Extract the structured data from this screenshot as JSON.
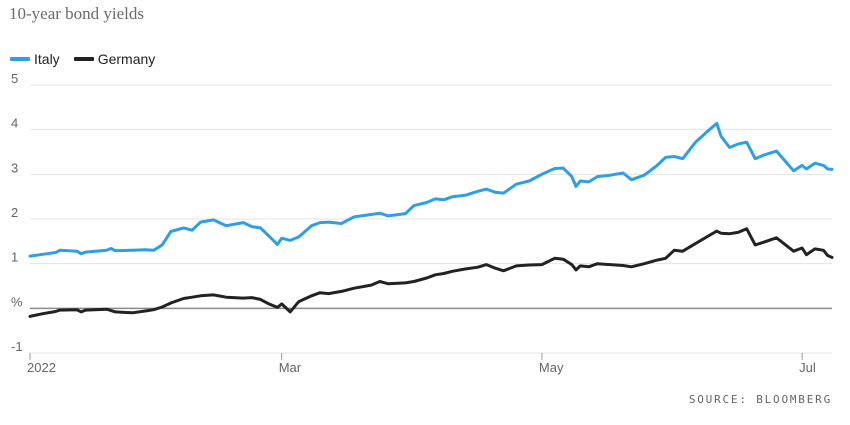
{
  "chart_data": {
    "type": "line",
    "title": "10-year bond yields",
    "source": "SOURCE: BLOOMBERG",
    "y_axis": {
      "min": -1,
      "max": 5,
      "ticks": [
        {
          "value": 5,
          "label": "5"
        },
        {
          "value": 4,
          "label": "4"
        },
        {
          "value": 3,
          "label": "3"
        },
        {
          "value": 2,
          "label": "2"
        },
        {
          "value": 1,
          "label": "1"
        },
        {
          "value": 0,
          "label": "%"
        },
        {
          "value": -1,
          "label": "-1"
        }
      ]
    },
    "x_axis": {
      "start": "2022-01-01",
      "end": "2022-07-08",
      "ticks": [
        {
          "date": "2022-01-01",
          "label": "2022"
        },
        {
          "date": "2022-03-01",
          "label": "Mar"
        },
        {
          "date": "2022-05-01",
          "label": "May"
        },
        {
          "date": "2022-07-01",
          "label": "Jul"
        }
      ]
    },
    "legend_position": "top-left",
    "series": [
      {
        "name": "Italy",
        "color": "#2e9fe3",
        "points": [
          [
            "2022-01-01",
            1.17
          ],
          [
            "2022-01-04",
            1.21
          ],
          [
            "2022-01-07",
            1.25
          ],
          [
            "2022-01-08",
            1.3
          ],
          [
            "2022-01-12",
            1.28
          ],
          [
            "2022-01-13",
            1.22
          ],
          [
            "2022-01-14",
            1.26
          ],
          [
            "2022-01-19",
            1.3
          ],
          [
            "2022-01-20",
            1.34
          ],
          [
            "2022-01-21",
            1.29
          ],
          [
            "2022-01-25",
            1.3
          ],
          [
            "2022-01-28",
            1.31
          ],
          [
            "2022-01-30",
            1.3
          ],
          [
            "2022-02-01",
            1.42
          ],
          [
            "2022-02-03",
            1.72
          ],
          [
            "2022-02-06",
            1.8
          ],
          [
            "2022-02-08",
            1.75
          ],
          [
            "2022-02-10",
            1.93
          ],
          [
            "2022-02-13",
            1.98
          ],
          [
            "2022-02-16",
            1.85
          ],
          [
            "2022-02-20",
            1.92
          ],
          [
            "2022-02-22",
            1.83
          ],
          [
            "2022-02-24",
            1.8
          ],
          [
            "2022-02-26",
            1.62
          ],
          [
            "2022-02-28",
            1.43
          ],
          [
            "2022-03-01",
            1.57
          ],
          [
            "2022-03-03",
            1.52
          ],
          [
            "2022-03-05",
            1.6
          ],
          [
            "2022-03-08",
            1.85
          ],
          [
            "2022-03-10",
            1.92
          ],
          [
            "2022-03-12",
            1.93
          ],
          [
            "2022-03-15",
            1.9
          ],
          [
            "2022-03-18",
            2.05
          ],
          [
            "2022-03-22",
            2.1
          ],
          [
            "2022-03-24",
            2.13
          ],
          [
            "2022-03-26",
            2.07
          ],
          [
            "2022-03-30",
            2.12
          ],
          [
            "2022-04-01",
            2.3
          ],
          [
            "2022-04-04",
            2.37
          ],
          [
            "2022-04-06",
            2.45
          ],
          [
            "2022-04-08",
            2.43
          ],
          [
            "2022-04-10",
            2.5
          ],
          [
            "2022-04-13",
            2.53
          ],
          [
            "2022-04-16",
            2.62
          ],
          [
            "2022-04-18",
            2.67
          ],
          [
            "2022-04-20",
            2.6
          ],
          [
            "2022-04-22",
            2.58
          ],
          [
            "2022-04-25",
            2.78
          ],
          [
            "2022-04-28",
            2.85
          ],
          [
            "2022-05-01",
            3.0
          ],
          [
            "2022-05-04",
            3.13
          ],
          [
            "2022-05-06",
            3.14
          ],
          [
            "2022-05-08",
            2.95
          ],
          [
            "2022-05-09",
            2.73
          ],
          [
            "2022-05-10",
            2.85
          ],
          [
            "2022-05-12",
            2.83
          ],
          [
            "2022-05-14",
            2.95
          ],
          [
            "2022-05-17",
            2.98
          ],
          [
            "2022-05-20",
            3.03
          ],
          [
            "2022-05-22",
            2.88
          ],
          [
            "2022-05-25",
            2.98
          ],
          [
            "2022-05-28",
            3.2
          ],
          [
            "2022-05-30",
            3.38
          ],
          [
            "2022-06-01",
            3.4
          ],
          [
            "2022-06-03",
            3.35
          ],
          [
            "2022-06-06",
            3.72
          ],
          [
            "2022-06-09",
            3.98
          ],
          [
            "2022-06-11",
            4.14
          ],
          [
            "2022-06-12",
            3.85
          ],
          [
            "2022-06-14",
            3.6
          ],
          [
            "2022-06-16",
            3.68
          ],
          [
            "2022-06-18",
            3.72
          ],
          [
            "2022-06-20",
            3.35
          ],
          [
            "2022-06-22",
            3.43
          ],
          [
            "2022-06-25",
            3.52
          ],
          [
            "2022-06-29",
            3.08
          ],
          [
            "2022-07-01",
            3.2
          ],
          [
            "2022-07-02",
            3.12
          ],
          [
            "2022-07-04",
            3.25
          ],
          [
            "2022-07-06",
            3.2
          ],
          [
            "2022-07-07",
            3.12
          ],
          [
            "2022-07-08",
            3.11
          ]
        ]
      },
      {
        "name": "Germany",
        "color": "#222222",
        "points": [
          [
            "2022-01-01",
            -0.18
          ],
          [
            "2022-01-04",
            -0.12
          ],
          [
            "2022-01-07",
            -0.07
          ],
          [
            "2022-01-08",
            -0.04
          ],
          [
            "2022-01-12",
            -0.03
          ],
          [
            "2022-01-13",
            -0.08
          ],
          [
            "2022-01-14",
            -0.04
          ],
          [
            "2022-01-19",
            -0.02
          ],
          [
            "2022-01-21",
            -0.08
          ],
          [
            "2022-01-25",
            -0.1
          ],
          [
            "2022-01-28",
            -0.06
          ],
          [
            "2022-01-30",
            -0.03
          ],
          [
            "2022-02-01",
            0.03
          ],
          [
            "2022-02-03",
            0.12
          ],
          [
            "2022-02-06",
            0.22
          ],
          [
            "2022-02-08",
            0.25
          ],
          [
            "2022-02-10",
            0.28
          ],
          [
            "2022-02-13",
            0.3
          ],
          [
            "2022-02-16",
            0.25
          ],
          [
            "2022-02-20",
            0.23
          ],
          [
            "2022-02-22",
            0.24
          ],
          [
            "2022-02-24",
            0.2
          ],
          [
            "2022-02-26",
            0.1
          ],
          [
            "2022-02-28",
            0.02
          ],
          [
            "2022-03-01",
            0.1
          ],
          [
            "2022-03-03",
            -0.08
          ],
          [
            "2022-03-05",
            0.15
          ],
          [
            "2022-03-08",
            0.28
          ],
          [
            "2022-03-10",
            0.35
          ],
          [
            "2022-03-12",
            0.33
          ],
          [
            "2022-03-15",
            0.38
          ],
          [
            "2022-03-18",
            0.45
          ],
          [
            "2022-03-22",
            0.52
          ],
          [
            "2022-03-24",
            0.6
          ],
          [
            "2022-03-26",
            0.55
          ],
          [
            "2022-03-30",
            0.57
          ],
          [
            "2022-04-01",
            0.6
          ],
          [
            "2022-04-04",
            0.68
          ],
          [
            "2022-04-06",
            0.75
          ],
          [
            "2022-04-08",
            0.78
          ],
          [
            "2022-04-10",
            0.83
          ],
          [
            "2022-04-13",
            0.88
          ],
          [
            "2022-04-16",
            0.92
          ],
          [
            "2022-04-18",
            0.98
          ],
          [
            "2022-04-20",
            0.9
          ],
          [
            "2022-04-22",
            0.84
          ],
          [
            "2022-04-25",
            0.95
          ],
          [
            "2022-04-28",
            0.97
          ],
          [
            "2022-05-01",
            0.98
          ],
          [
            "2022-05-04",
            1.12
          ],
          [
            "2022-05-06",
            1.1
          ],
          [
            "2022-05-08",
            0.98
          ],
          [
            "2022-05-09",
            0.86
          ],
          [
            "2022-05-10",
            0.95
          ],
          [
            "2022-05-12",
            0.93
          ],
          [
            "2022-05-14",
            1.0
          ],
          [
            "2022-05-17",
            0.98
          ],
          [
            "2022-05-20",
            0.96
          ],
          [
            "2022-05-22",
            0.93
          ],
          [
            "2022-05-25",
            1.0
          ],
          [
            "2022-05-28",
            1.08
          ],
          [
            "2022-05-30",
            1.12
          ],
          [
            "2022-06-01",
            1.3
          ],
          [
            "2022-06-03",
            1.28
          ],
          [
            "2022-06-06",
            1.45
          ],
          [
            "2022-06-09",
            1.62
          ],
          [
            "2022-06-11",
            1.73
          ],
          [
            "2022-06-12",
            1.68
          ],
          [
            "2022-06-14",
            1.67
          ],
          [
            "2022-06-16",
            1.7
          ],
          [
            "2022-06-18",
            1.78
          ],
          [
            "2022-06-20",
            1.42
          ],
          [
            "2022-06-22",
            1.48
          ],
          [
            "2022-06-25",
            1.58
          ],
          [
            "2022-06-29",
            1.28
          ],
          [
            "2022-07-01",
            1.35
          ],
          [
            "2022-07-02",
            1.2
          ],
          [
            "2022-07-04",
            1.33
          ],
          [
            "2022-07-06",
            1.3
          ],
          [
            "2022-07-07",
            1.18
          ],
          [
            "2022-07-08",
            1.14
          ]
        ]
      }
    ]
  }
}
